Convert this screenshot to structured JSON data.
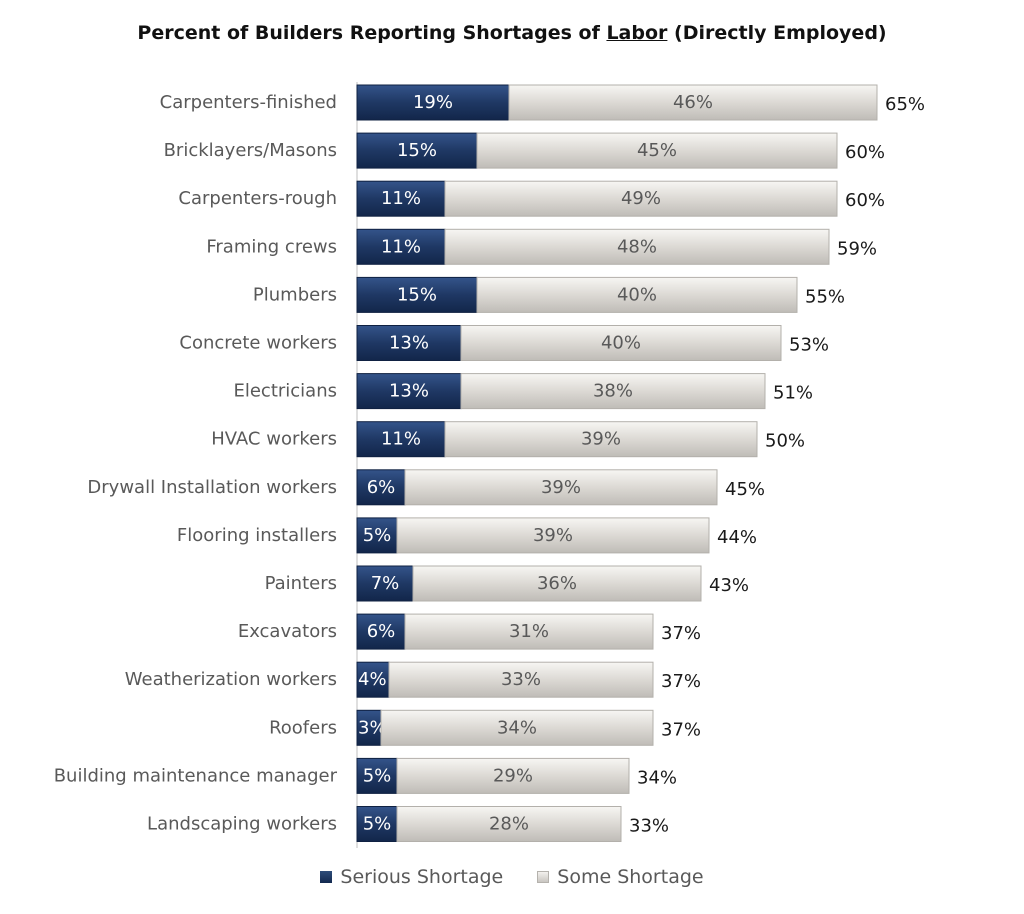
{
  "chart_data": {
    "type": "bar",
    "orientation": "horizontal",
    "stacked": true,
    "title_pre": "Percent of Builders Reporting Shortages of ",
    "title_underlined": "Labor",
    "title_post": " (Directly Employed)",
    "categories": [
      "Carpenters-finished",
      "Bricklayers/Masons",
      "Carpenters-rough",
      "Framing crews",
      "Plumbers",
      "Concrete workers",
      "Electricians",
      "HVAC workers",
      "Drywall Installation workers",
      "Flooring installers",
      "Painters",
      "Excavators",
      "Weatherization workers",
      "Roofers",
      "Building maintenance manager",
      "Landscaping workers"
    ],
    "series": [
      {
        "name": "Serious Shortage",
        "color": "#1f3864",
        "values": [
          19,
          15,
          11,
          11,
          15,
          13,
          13,
          11,
          6,
          5,
          7,
          6,
          4,
          3,
          5,
          5
        ]
      },
      {
        "name": "Some Shortage",
        "color": "#dcd9d4",
        "values": [
          46,
          45,
          49,
          48,
          40,
          40,
          38,
          39,
          39,
          39,
          36,
          31,
          33,
          34,
          29,
          28
        ]
      }
    ],
    "totals": [
      65,
      60,
      60,
      59,
      55,
      53,
      51,
      50,
      45,
      44,
      43,
      37,
      37,
      37,
      34,
      33
    ],
    "value_suffix": "%",
    "xlim": [
      0,
      65
    ],
    "xlabel": "",
    "ylabel": "",
    "grid": false,
    "legend_position": "bottom"
  }
}
